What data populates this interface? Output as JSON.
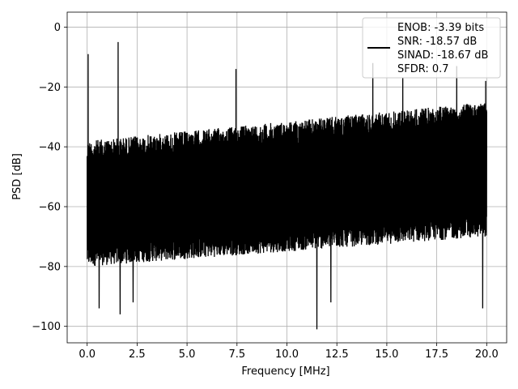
{
  "chart_data": {
    "type": "line",
    "title": "",
    "xlabel": "Frequency [MHz]",
    "ylabel": "PSD [dB]",
    "xlim": [
      -1,
      21
    ],
    "ylim": [
      -105.5,
      5
    ],
    "xticks": [
      0.0,
      2.5,
      5.0,
      7.5,
      10.0,
      12.5,
      15.0,
      17.5,
      20.0
    ],
    "xtick_labels": [
      "0.0",
      "2.5",
      "5.0",
      "7.5",
      "10.0",
      "12.5",
      "15.0",
      "17.5",
      "20.0"
    ],
    "yticks": [
      0,
      -20,
      -40,
      -60,
      -80,
      -100
    ],
    "ytick_labels": [
      "0",
      "−20",
      "−40",
      "−60",
      "−80",
      "−100"
    ],
    "grid": true,
    "legend_position": "top-right",
    "legend_lines": [
      "ENOB: -3.39 bits",
      "SNR: -18.57 dB",
      "SINAD: -18.67 dB",
      "SFDR: 0.7"
    ],
    "series": [
      {
        "color": "#000000",
        "x_range": [
          0,
          20
        ],
        "noise_band": {
          "start": {
            "x": 0,
            "low": -80,
            "high": -38
          },
          "end": {
            "x": 20,
            "low": -70,
            "high": -25
          }
        },
        "spikes": [
          {
            "x": 0.05,
            "y": -9
          },
          {
            "x": 1.55,
            "y": -5
          },
          {
            "x": 1.65,
            "y": -96
          },
          {
            "x": 0.6,
            "y": -94
          },
          {
            "x": 2.3,
            "y": -92
          },
          {
            "x": 7.45,
            "y": -14
          },
          {
            "x": 11.5,
            "y": -101
          },
          {
            "x": 12.2,
            "y": -92
          },
          {
            "x": 14.3,
            "y": -12
          },
          {
            "x": 15.8,
            "y": -17
          },
          {
            "x": 18.5,
            "y": -13
          },
          {
            "x": 19.8,
            "y": -94
          },
          {
            "x": 19.95,
            "y": -18
          }
        ]
      }
    ]
  }
}
